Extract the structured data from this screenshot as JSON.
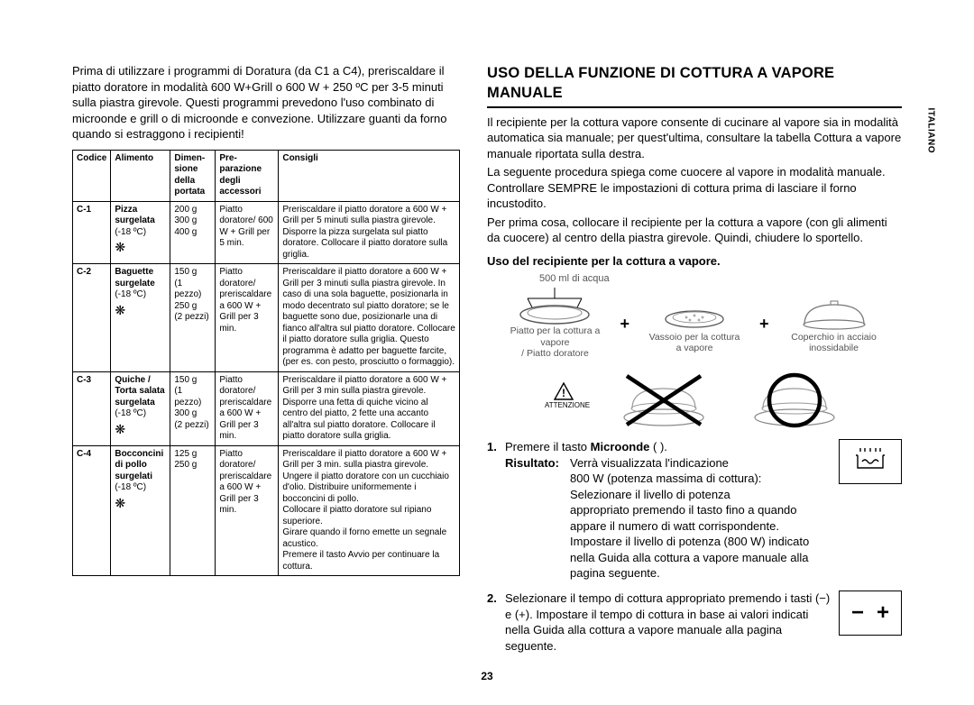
{
  "sideLabel": "ITALIANO",
  "pageNumber": "23",
  "left": {
    "intro": "Prima di utilizzare i programmi di Doratura (da C1 a C4), preriscaldare il piatto doratore in modalità 600 W+Grill o 600 W + 250 ºC per 3-5 minuti sulla piastra girevole. Questi programmi prevedono l'uso combinato di microonde e grill o di microonde e convezione. Utilizzare guanti da forno quando si estraggono i recipienti!",
    "headers": {
      "code": "Codice",
      "food": "Alimento",
      "size": "Dimen‑\nsione\ndella\nportata",
      "prep": "Pre‑\nparazione\ndegli\naccessori",
      "advice": "Consigli"
    },
    "rows": [
      {
        "code": "C-1",
        "food_bold": "Pizza surgelata",
        "food_rest": "(-18 ºC)",
        "size": "200 g\n300 g\n400 g",
        "prep": "Piatto doratore/ 600 W + Grill per 5 min.",
        "advice": "Preriscaldare il piatto doratore a 600 W + Grill per 5 minuti sulla piastra girevole. Disporre la pizza surgelata sul piatto doratore. Collocare il piatto doratore sulla griglia."
      },
      {
        "code": "C-2",
        "food_bold": "Baguette surgelate",
        "food_rest": "(-18 ºC)",
        "size": "150 g\n(1 pezzo)\n250 g\n(2 pezzi)",
        "prep": "Piatto doratore/ preriscaldare a 600 W + Grill per 3 min.",
        "advice": "Preriscaldare il piatto doratore a 600 W + Grill per 3 minuti sulla piastra girevole. In caso di una sola baguette, posizionarla in modo decentrato sul piatto doratore; se le baguette sono due, posizionarle una di fianco all'altra sul piatto doratore. Collocare il piatto doratore sulla griglia. Questo programma è adatto per baguette farcite, (per es. con pesto, prosciutto o formaggio)."
      },
      {
        "code": "C-3",
        "food_bold": "Quiche / Torta salata surgelata",
        "food_rest": "(-18 ºC)",
        "size": "150 g\n(1 pezzo)\n300 g\n(2 pezzi)",
        "prep": "Piatto doratore/ preriscaldare a 600 W + Grill per 3 min.",
        "advice": "Preriscaldare il piatto doratore a 600 W + Grill per 3 min sulla piastra girevole. Disporre una fetta di quiche vicino al centro del piatto, 2 fette una accanto all'altra sul piatto doratore. Collocare il piatto doratore sulla griglia."
      },
      {
        "code": "C-4",
        "food_bold": "Bocconcini di pollo surgelati",
        "food_rest": "(-18 ºC)",
        "size": "125 g\n250 g",
        "prep": "Piatto doratore/ preriscaldare a 600 W + Grill per 3 min.",
        "advice": "Preriscaldare il piatto doratore a 600 W + Grill per 3 min. sulla piastra girevole. Ungere il piatto doratore con un cucchiaio d'olio. Distribuire uniformemente i bocconcini di pollo.\nCollocare il piatto doratore sul ripiano superiore.\nGirare quando il forno emette un segnale acustico.\nPremere il tasto Avvio per continuare la cottura."
      }
    ]
  },
  "right": {
    "title": "USO DELLA FUNZIONE DI COTTURA A VAPORE MANUALE",
    "p1": "Il recipiente per la cottura vapore consente di cucinare al vapore sia in modalità automatica sia manuale; per quest'ultima, consultare la tabella Cottura a vapore manuale riportata sulla destra.",
    "p2": "La seguente procedura spiega come cuocere al vapore in modalità manuale. Controllare SEMPRE le impostazioni di cottura prima di lasciare il forno incustodito.",
    "p3": "Per prima cosa, collocare il recipiente per la cottura a vapore (con gli alimenti da cuocere) al centro della piastra girevole. Quindi, chiudere lo sportello.",
    "subhead": "Uso del recipiente per la cottura a vapore.",
    "water": "500 ml di acqua",
    "cap1a": "Piatto per la cottura a vapore",
    "cap1b": "/ Piatto doratore",
    "cap2a": "Vassoio per la cottura",
    "cap2b": "a vapore",
    "cap3a": "Coperchio in acciaio",
    "cap3b": "inossidabile",
    "warn": "ATTENZIONE",
    "step1_lead": "Premere il tasto ",
    "step1_bold": "Microonde",
    "step1_tail": " (      ).",
    "result_label": "Risultato:",
    "result_body": "Verrà  visualizzata l'indicazione\n800 W (potenza massima di cottura):\nSelezionare il livello di potenza\nappropriato premendo il tasto        fino a quando appare il numero di watt corrispondente.\nImpostare il livello di potenza (800 W) indicato nella Guida alla cottura a vapore manuale alla pagina seguente.",
    "step2": "Selezionare il tempo di cottura appropriato premendo i tasti (−) e (+). Impostare il tempo di cottura in base ai valori indicati nella Guida alla cottura a vapore manuale alla pagina seguente."
  }
}
